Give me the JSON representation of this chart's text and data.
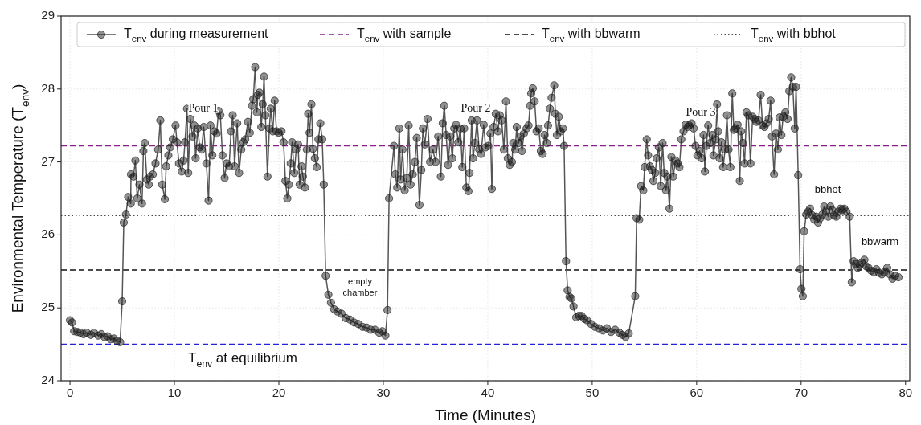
{
  "chart_data": {
    "type": "line",
    "xlabel": "Time (Minutes)",
    "ylabel": "Environmental Temperature (T$_{env}$)",
    "xlim": [
      -0.85,
      80.4
    ],
    "ylim": [
      24,
      29
    ],
    "xticks": [
      0,
      10,
      20,
      30,
      40,
      50,
      60,
      70,
      80
    ],
    "yticks": [
      24,
      25,
      26,
      27,
      28,
      29
    ],
    "grid": true,
    "legend": "top",
    "marker": "circle",
    "line_style": "solid",
    "series": [
      {
        "name": "T$_{env}$ during measurement",
        "color": "#555555",
        "x": [
          0,
          0.2,
          0.4,
          0.7,
          1.0,
          1.3,
          1.6,
          2.0,
          2.3,
          2.7,
          3.0,
          3.3,
          3.6,
          3.9,
          4.2,
          4.5,
          4.8,
          5.0,
          5.15,
          5.36,
          5.57,
          5.82,
          5.84,
          6.08,
          6.26,
          6.44,
          6.65,
          6.9,
          7.03,
          7.16,
          7.36,
          7.54,
          7.67,
          7.93,
          8.19,
          8.44,
          8.65,
          8.83,
          9.08,
          9.21,
          9.42,
          9.6,
          9.85,
          10.11,
          10.24,
          10.44,
          10.7,
          10.88,
          11.01,
          11.21,
          11.32,
          11.52,
          11.73,
          11.91,
          12.03,
          12.24,
          12.42,
          12.6,
          12.8,
          13.06,
          13.27,
          13.45,
          13.63,
          13.83,
          14.04,
          14.22,
          14.4,
          14.6,
          14.81,
          14.99,
          15.24,
          15.42,
          15.58,
          15.76,
          16.01,
          16.19,
          16.4,
          16.6,
          16.78,
          17.04,
          17.22,
          17.42,
          17.55,
          17.73,
          17.89,
          17.99,
          18.14,
          18.32,
          18.45,
          18.58,
          18.71,
          18.91,
          19.09,
          19.22,
          19.42,
          19.6,
          19.78,
          19.99,
          20.25,
          20.45,
          20.63,
          20.81,
          20.96,
          21.14,
          21.27,
          21.48,
          21.66,
          21.84,
          21.99,
          22.17,
          22.3,
          22.5,
          22.68,
          22.81,
          22.94,
          23.12,
          23.27,
          23.45,
          23.63,
          23.79,
          23.97,
          24.15,
          24.3,
          24.48,
          24.74,
          24.99,
          25.3,
          25.6,
          26.0,
          26.4,
          26.8,
          27.2,
          27.6,
          28.0,
          28.4,
          28.8,
          29.2,
          29.6,
          29.9,
          30.2,
          30.4,
          30.55,
          31.02,
          31.15,
          31.33,
          31.53,
          31.66,
          31.84,
          32.05,
          32.25,
          32.43,
          32.61,
          32.82,
          33.02,
          33.2,
          33.46,
          33.64,
          33.79,
          33.97,
          34.23,
          34.48,
          34.74,
          35.0,
          35.25,
          35.51,
          35.69,
          35.84,
          36.02,
          36.2,
          36.41,
          36.61,
          36.79,
          36.97,
          37.18,
          37.38,
          37.56,
          37.74,
          37.95,
          38.15,
          38.25,
          38.46,
          38.59,
          38.77,
          38.97,
          39.18,
          39.36,
          39.61,
          39.79,
          40.05,
          40.26,
          40.39,
          40.56,
          40.77,
          40.98,
          41.15,
          41.33,
          41.54,
          41.74,
          41.92,
          42.1,
          42.31,
          42.44,
          42.62,
          42.77,
          42.95,
          43.13,
          43.28,
          43.46,
          43.72,
          43.9,
          44.05,
          44.16,
          44.31,
          44.49,
          44.67,
          44.88,
          45.08,
          45.26,
          45.44,
          45.65,
          45.77,
          45.95,
          46.11,
          46.36,
          46.47,
          46.62,
          46.8,
          46.98,
          47.19,
          47.31,
          47.49,
          47.65,
          47.83,
          48.01,
          48.21,
          48.47,
          48.72,
          48.98,
          49.24,
          49.5,
          49.88,
          50.26,
          50.65,
          51.03,
          51.4,
          51.8,
          52.2,
          52.6,
          52.9,
          53.2,
          53.5,
          54.12,
          54.25,
          54.5,
          54.68,
          54.89,
          55.02,
          55.22,
          55.35,
          55.53,
          55.71,
          55.86,
          56.04,
          56.17,
          56.38,
          56.56,
          56.74,
          56.89,
          57.07,
          57.2,
          57.4,
          57.58,
          57.76,
          57.97,
          58.17,
          58.35,
          58.53,
          58.74,
          58.94,
          59.12,
          59.3,
          59.51,
          59.71,
          59.89,
          60.07,
          60.28,
          60.48,
          60.66,
          60.79,
          60.92,
          61.1,
          61.3,
          61.51,
          61.61,
          61.82,
          61.95,
          62.07,
          62.2,
          62.38,
          62.54,
          62.72,
          62.9,
          63.05,
          63.23,
          63.41,
          63.56,
          63.74,
          63.92,
          64.13,
          64.26,
          64.43,
          64.59,
          64.77,
          64.95,
          65.15,
          65.36,
          65.54,
          65.72,
          65.92,
          66.13,
          66.31,
          66.49,
          66.69,
          66.9,
          67.08,
          67.21,
          67.41,
          67.59,
          67.77,
          67.93,
          68.11,
          68.28,
          68.49,
          68.7,
          68.87,
          69.05,
          69.21,
          69.39,
          69.52,
          69.72,
          69.9,
          70.03,
          70.16,
          70.29,
          70.49,
          70.67,
          70.85,
          71.06,
          71.26,
          71.44,
          71.62,
          71.83,
          72.03,
          72.21,
          72.39,
          72.6,
          72.8,
          72.98,
          73.16,
          73.37,
          73.57,
          73.75,
          73.93,
          74.13,
          74.34,
          74.65,
          74.85,
          75.03,
          75.21,
          75.42,
          75.62,
          75.8,
          76.06,
          76.24,
          76.44,
          76.7,
          76.96,
          77.21,
          77.47,
          77.73,
          77.98,
          78.24,
          78.5,
          78.75,
          79.01,
          79.32
        ],
        "values": [
          24.83,
          24.8,
          24.68,
          24.67,
          24.66,
          24.64,
          24.66,
          24.63,
          24.66,
          24.62,
          24.64,
          24.6,
          24.61,
          24.57,
          24.58,
          24.55,
          24.53,
          25.09,
          26.17,
          26.28,
          26.52,
          26.43,
          26.83,
          26.8,
          27.02,
          26.5,
          26.69,
          26.43,
          27.15,
          27.26,
          26.76,
          26.69,
          26.8,
          26.83,
          26.98,
          27.17,
          27.57,
          26.69,
          26.49,
          26.94,
          27.09,
          27.2,
          27.31,
          27.5,
          27.27,
          26.98,
          26.87,
          27.02,
          27.27,
          27.73,
          26.85,
          27.59,
          27.35,
          27.5,
          27.05,
          27.46,
          27.2,
          27.17,
          27.48,
          26.98,
          26.47,
          27.5,
          27.09,
          27.42,
          27.39,
          27.7,
          27.64,
          27.09,
          26.78,
          26.98,
          26.94,
          27.42,
          27.64,
          26.94,
          27.53,
          26.85,
          27.17,
          27.27,
          27.31,
          27.55,
          27.4,
          27.77,
          27.86,
          28.3,
          27.68,
          27.92,
          27.95,
          27.48,
          27.79,
          28.17,
          27.64,
          26.8,
          27.46,
          27.73,
          27.42,
          27.84,
          27.42,
          27.4,
          27.42,
          27.27,
          26.74,
          26.5,
          26.69,
          26.98,
          27.27,
          26.85,
          27.17,
          27.24,
          26.69,
          26.94,
          26.8,
          26.65,
          27.17,
          27.66,
          27.4,
          27.79,
          27.18,
          27.05,
          26.93,
          27.31,
          27.53,
          27.31,
          26.69,
          25.44,
          25.18,
          25.07,
          24.98,
          24.95,
          24.92,
          24.86,
          24.84,
          24.8,
          24.78,
          24.74,
          24.73,
          24.7,
          24.7,
          24.66,
          24.68,
          24.62,
          24.97,
          26.5,
          27.22,
          26.83,
          26.65,
          27.46,
          26.76,
          27.17,
          26.61,
          26.78,
          27.5,
          26.69,
          26.83,
          27.0,
          27.33,
          26.41,
          26.89,
          27.46,
          27.24,
          27.59,
          27.0,
          27.17,
          27.0,
          27.35,
          26.8,
          27.53,
          27.77,
          27.37,
          26.96,
          27.35,
          27.05,
          27.46,
          27.51,
          27.27,
          27.46,
          26.93,
          27.46,
          26.65,
          26.6,
          26.85,
          27.57,
          27.05,
          27.26,
          27.57,
          27.17,
          27.11,
          27.51,
          27.2,
          27.22,
          27.39,
          26.63,
          27.48,
          27.66,
          27.42,
          27.64,
          27.57,
          27.17,
          27.83,
          27.05,
          26.96,
          27.0,
          27.26,
          27.17,
          27.48,
          27.26,
          27.35,
          27.15,
          27.39,
          27.46,
          27.5,
          27.77,
          27.94,
          28.01,
          27.83,
          27.42,
          27.46,
          27.15,
          27.11,
          27.37,
          27.26,
          27.5,
          27.73,
          27.88,
          28.05,
          27.66,
          27.37,
          27.62,
          27.42,
          27.46,
          27.22,
          25.64,
          25.24,
          25.15,
          25.13,
          25.02,
          24.87,
          24.89,
          24.89,
          24.85,
          24.83,
          24.78,
          24.74,
          24.72,
          24.69,
          24.72,
          24.67,
          24.7,
          24.66,
          24.63,
          24.6,
          24.65,
          25.16,
          26.23,
          26.21,
          26.67,
          26.61,
          26.93,
          27.31,
          27.09,
          26.94,
          26.89,
          26.74,
          26.85,
          27.05,
          27.2,
          26.67,
          27.26,
          26.85,
          26.61,
          26.8,
          26.36,
          27.07,
          26.8,
          27.02,
          26.98,
          26.93,
          27.31,
          27.42,
          27.51,
          27.48,
          27.5,
          27.53,
          27.46,
          27.22,
          27.09,
          27.15,
          27.05,
          27.37,
          26.87,
          27.22,
          27.5,
          27.26,
          27.37,
          27.09,
          27.31,
          27.79,
          27.42,
          27.05,
          27.27,
          26.93,
          27.17,
          27.64,
          27.17,
          26.93,
          27.94,
          27.44,
          27.46,
          27.51,
          26.74,
          27.42,
          27.26,
          26.98,
          27.68,
          27.64,
          26.98,
          27.62,
          27.59,
          27.55,
          27.57,
          27.92,
          27.5,
          27.48,
          27.53,
          27.59,
          27.84,
          27.35,
          26.83,
          27.39,
          27.17,
          27.61,
          27.37,
          27.62,
          27.68,
          27.59,
          27.97,
          28.16,
          28.03,
          27.46,
          28.03,
          26.82,
          25.53,
          25.26,
          25.16,
          26.05,
          26.28,
          26.32,
          26.36,
          26.27,
          26.21,
          26.25,
          26.17,
          26.23,
          26.28,
          26.39,
          26.32,
          26.25,
          26.39,
          26.34,
          26.27,
          26.25,
          26.32,
          26.36,
          26.34,
          26.36,
          26.32,
          26.25,
          25.35,
          25.64,
          25.6,
          25.55,
          25.59,
          25.62,
          25.66,
          25.57,
          25.55,
          25.51,
          25.49,
          25.53,
          25.48,
          25.46,
          25.49,
          25.55,
          25.46,
          25.4,
          25.44,
          25.42
        ]
      }
    ],
    "ref_lines": [
      {
        "axis": "y",
        "value": 27.22,
        "label": "T$_{env}$ with sample",
        "color": "#8b1f8b",
        "line_style": "dashed"
      },
      {
        "axis": "y",
        "value": 25.52,
        "label": "T$_{env}$ with bbwarm",
        "color": "#111111",
        "line_style": "dashed"
      },
      {
        "axis": "y",
        "value": 26.27,
        "label": "T$_{env}$ with bbhot",
        "color": "#111111",
        "line_style": "dotted"
      },
      {
        "axis": "y",
        "value": 24.5,
        "color": "#2424d6",
        "line_style": "dashed"
      }
    ],
    "annotations": [
      "T$_{env}$ at equilibrium",
      "Pour 1",
      "Pour 2",
      "Pour 3",
      "empty chamber",
      "bbhot",
      "bbwarm"
    ]
  }
}
